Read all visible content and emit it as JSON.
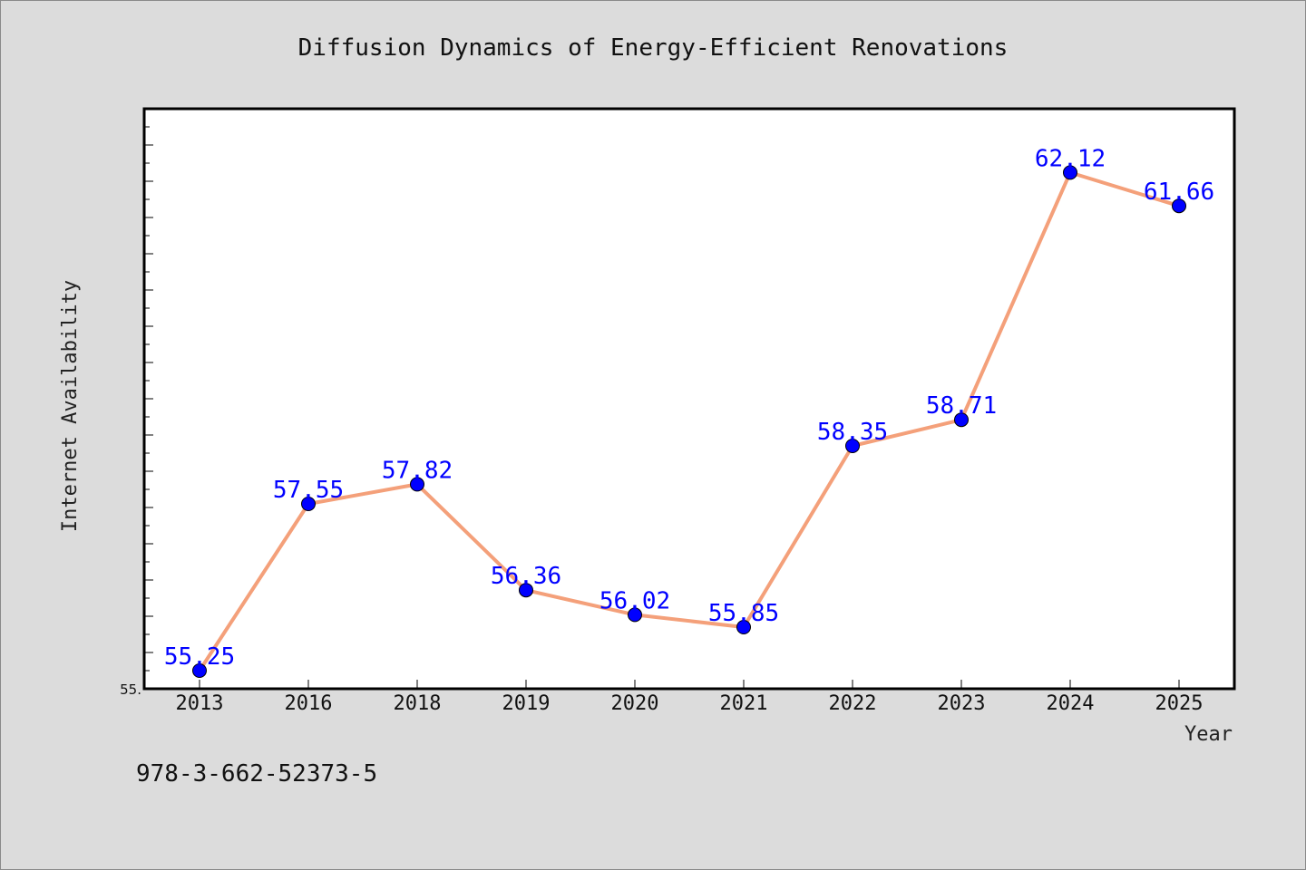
{
  "chart_data": {
    "type": "line",
    "title": "Diffusion Dynamics of Energy-Efficient Renovations",
    "xlabel": "Year",
    "ylabel": "Internet Availability",
    "categories": [
      "2013",
      "2016",
      "2018",
      "2019",
      "2020",
      "2021",
      "2022",
      "2023",
      "2024",
      "2025"
    ],
    "series": [
      {
        "values": [
          55.25,
          57.55,
          57.82,
          56.36,
          56.02,
          55.85,
          58.35,
          58.71,
          62.12,
          61.66
        ],
        "labels": [
          "55.25",
          "57.55",
          "57.82",
          "56.36",
          "56.02",
          "55.85",
          "58.35",
          "58.71",
          "62.12",
          "61.66"
        ]
      }
    ],
    "ylim": [
      55.0,
      63.0
    ],
    "y_min_tick_label": "55.",
    "grid": false,
    "legend": "none",
    "colors": {
      "line": "#f4a07a",
      "marker": "#0000ff",
      "data_label": "#0000ff",
      "plot_background": "#ffffff",
      "figure_background": "#dcdcdc"
    }
  },
  "annotation": "978-3-662-52373-5"
}
